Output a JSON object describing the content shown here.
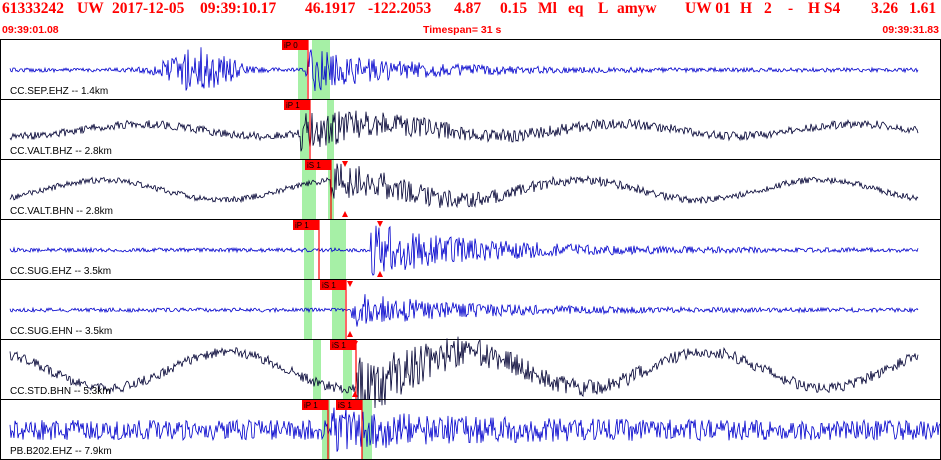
{
  "header": {
    "event_id": "61333242",
    "network": "UW",
    "date": "2017-12-05",
    "time": "09:39:10.17",
    "lat": "46.1917",
    "lon": "-122.2053",
    "depth": "4.87",
    "magnitude": "0.15",
    "mag_type": "Ml",
    "event_type": "eq",
    "location_code": "L",
    "author": "amyw",
    "source": "UW 01",
    "quality": "H",
    "count": "2",
    "dash": "-",
    "quality2": "H S4",
    "val1": "3.26",
    "val2": "1.61",
    "start_time": "09:39:01.08",
    "timespan": "Timespan=  31 s",
    "end_time": "09:39:31.83"
  },
  "colors": {
    "header_text": "#ff0000",
    "trace_blue": "#0000cc",
    "trace_black": "#000033",
    "pick_red": "#ff0000",
    "window_green": "#a6f0a6",
    "border": "#000000"
  },
  "traces": [
    {
      "label": "CC.SEP.EHZ -- 1.4km",
      "color": "blue",
      "picks": [
        {
          "label": "iP 0"
        }
      ]
    },
    {
      "label": "CC.VALT.BHZ -- 2.8km",
      "color": "black",
      "picks": [
        {
          "label": "iP 1"
        }
      ]
    },
    {
      "label": "CC.VALT.BHN -- 2.8km",
      "color": "black",
      "picks": [
        {
          "label": "iS 1"
        }
      ]
    },
    {
      "label": "CC.SUG.EHZ -- 3.5km",
      "color": "blue",
      "picks": [
        {
          "label": "iP 1"
        }
      ]
    },
    {
      "label": "CC.SUG.EHN -- 3.5km",
      "color": "blue",
      "picks": [
        {
          "label": "iS 1"
        }
      ]
    },
    {
      "label": "CC.STD.BHN -- 5.3km",
      "color": "black",
      "picks": [
        {
          "label": "iS 1"
        }
      ]
    },
    {
      "label": "PB.B202.EHZ -- 7.9km",
      "color": "blue",
      "picks": [
        {
          "label": "iP 1"
        },
        {
          "label": "iS 1"
        }
      ]
    }
  ]
}
